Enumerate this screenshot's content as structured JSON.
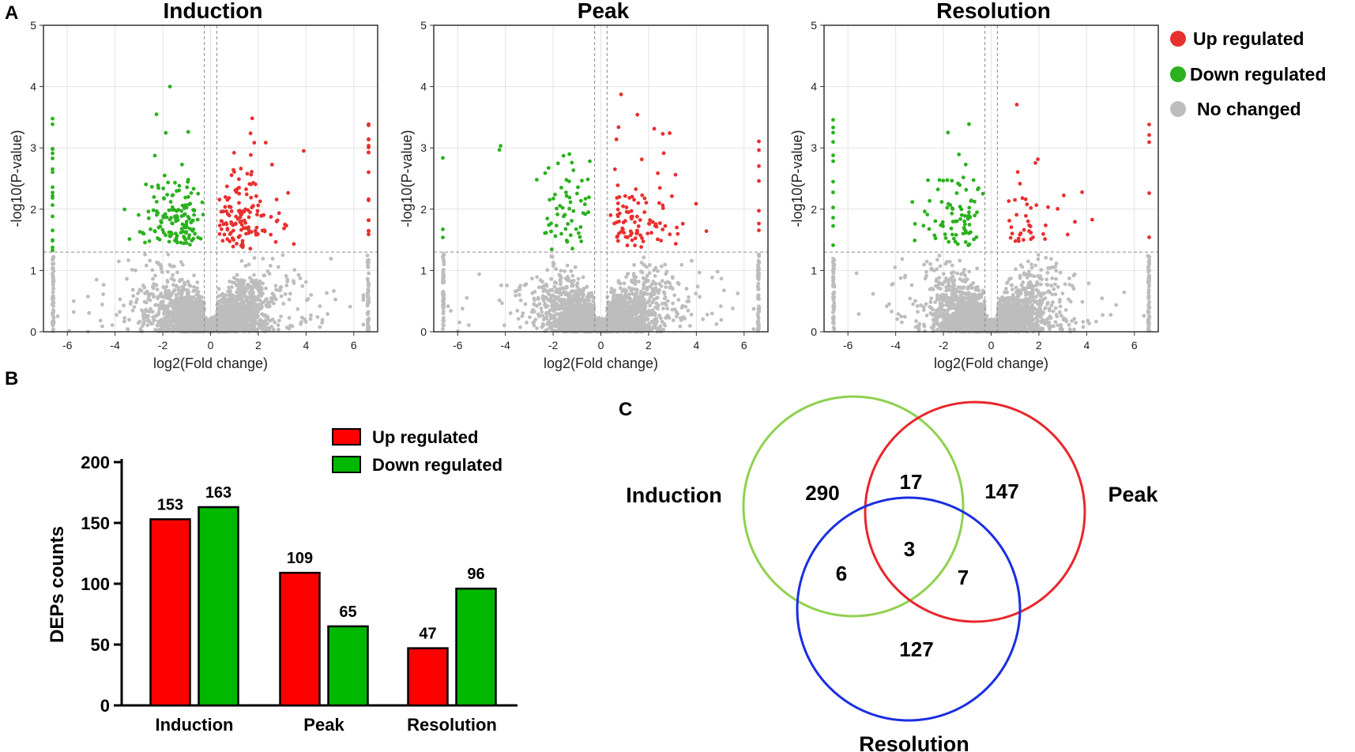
{
  "panels": {
    "a": "A",
    "b": "B",
    "c": "C"
  },
  "volcano": {
    "xlabel": "log2(Fold change)",
    "ylabel": "-log10(P-value)",
    "xlim": [
      -7,
      7
    ],
    "ylim": [
      0,
      5
    ],
    "xticks": [
      "-6",
      "-4",
      "-2",
      "0",
      "2",
      "4",
      "6"
    ],
    "yticks": [
      "0",
      "1",
      "2",
      "3",
      "4",
      "5"
    ],
    "p_threshold_log10": 1.3,
    "fc_threshold_log2": [
      -0.26,
      0.26
    ],
    "plots": [
      {
        "title": "Induction",
        "up_count": 153,
        "down_count": 163,
        "seed": 11
      },
      {
        "title": "Peak",
        "up_count": 109,
        "down_count": 65,
        "seed": 29
      },
      {
        "title": "Resolution",
        "up_count": 47,
        "down_count": 96,
        "seed": 47
      }
    ],
    "legend": [
      {
        "label": "Up regulated",
        "color": "#e8302e"
      },
      {
        "label": "Down regulated",
        "color": "#2ab11e"
      },
      {
        "label": "No changed",
        "color": "#bdbdbd"
      }
    ]
  },
  "chart_data": [
    {
      "type": "scatter",
      "title": "Induction",
      "xlabel": "log2(Fold change)",
      "ylabel": "-log10(P-value)",
      "xlim": [
        -7,
        7
      ],
      "ylim": [
        0,
        5
      ],
      "series": [
        {
          "name": "Up regulated",
          "count": 153
        },
        {
          "name": "Down regulated",
          "count": 163
        },
        {
          "name": "No changed"
        }
      ]
    },
    {
      "type": "scatter",
      "title": "Peak",
      "xlabel": "log2(Fold change)",
      "ylabel": "-log10(P-value)",
      "xlim": [
        -7,
        7
      ],
      "ylim": [
        0,
        5
      ],
      "series": [
        {
          "name": "Up regulated",
          "count": 109
        },
        {
          "name": "Down regulated",
          "count": 65
        },
        {
          "name": "No changed"
        }
      ]
    },
    {
      "type": "scatter",
      "title": "Resolution",
      "xlabel": "log2(Fold change)",
      "ylabel": "-log10(P-value)",
      "xlim": [
        -7,
        7
      ],
      "ylim": [
        0,
        5
      ],
      "series": [
        {
          "name": "Up regulated",
          "count": 47
        },
        {
          "name": "Down regulated",
          "count": 96
        },
        {
          "name": "No changed"
        }
      ]
    },
    {
      "type": "bar",
      "title": "",
      "categories": [
        "Induction",
        "Peak",
        "Resolution"
      ],
      "series": [
        {
          "name": "Up regulated",
          "values": [
            153,
            109,
            47
          ],
          "color": "#ff0000"
        },
        {
          "name": "Down regulated",
          "values": [
            163,
            65,
            96
          ],
          "color": "#00b800"
        }
      ],
      "ylabel": "DEPs counts",
      "ylim": [
        0,
        200
      ],
      "yticks": [
        "0",
        "50",
        "100",
        "150",
        "200"
      ],
      "legend": "top-right"
    },
    {
      "type": "venn",
      "sets": [
        {
          "name": "Induction",
          "color": "#8fd14f"
        },
        {
          "name": "Peak",
          "color": "#e8262b"
        },
        {
          "name": "Resolution",
          "color": "#1a2ee0"
        }
      ],
      "regions": {
        "induction_only": "290",
        "peak_only": "147",
        "resolution_only": "127",
        "induction_peak": "17",
        "induction_resolution": "6",
        "peak_resolution": "7",
        "all_three": "3"
      }
    }
  ]
}
